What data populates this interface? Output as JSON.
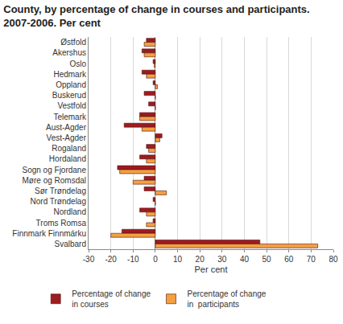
{
  "chart_data": {
    "type": "bar",
    "orientation": "horizontal",
    "title": "County, by percentage of change in courses and participants.\n2007-2006. Per cent",
    "x_label": "Per cent",
    "categories": [
      "Østfold",
      "Akershus",
      "Oslo",
      "Hedmark",
      "Oppland",
      "Buskerud",
      "Vestfold",
      "Telemark",
      "Aust-Agder",
      "Vest-Agder",
      "Rogaland",
      "Hordaland",
      "Sogn og Fjordane",
      "Møre og Romsdal",
      "Sør Trøndelag",
      "Nord Trøndelag",
      "Nordland",
      "Troms Romsa",
      "Finnmark Finnmárku",
      "Svalbard"
    ],
    "series": [
      {
        "name": "Percentage of change\nin courses",
        "color": "#9e1b20",
        "values": [
          -4,
          -6,
          -1,
          -6,
          -1,
          -5,
          -3,
          -7,
          -14,
          3,
          -4,
          -7,
          -17,
          -5,
          -5,
          -1,
          -7,
          -1,
          -15,
          47
        ]
      },
      {
        "name": "Percentage of change\nin  participants",
        "color": "#f4a040",
        "values": [
          -5,
          -5,
          -0.5,
          -4,
          1,
          0,
          0,
          -7,
          -6,
          2,
          -3,
          -4,
          -16,
          -10,
          5,
          0,
          -4,
          -4,
          -20,
          73
        ]
      }
    ],
    "xlim": [
      -30,
      80
    ],
    "xticks": [
      -30,
      -20,
      -10,
      0,
      10,
      20,
      30,
      40,
      50,
      60,
      70,
      80
    ],
    "grid": true,
    "legend": "bottom"
  }
}
